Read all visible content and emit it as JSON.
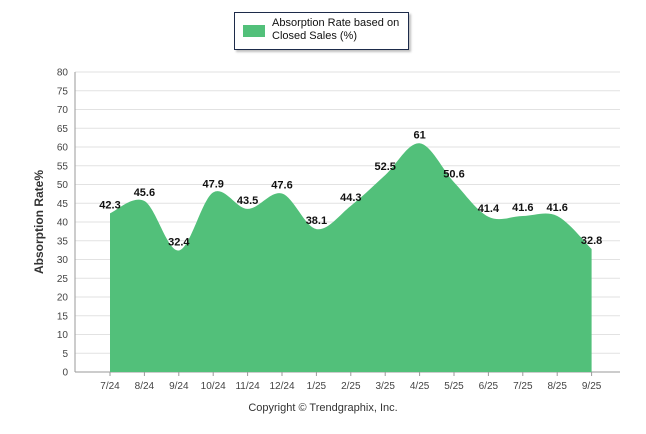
{
  "chart_data": {
    "type": "area",
    "legend_label": "Absorption Rate based on Closed Sales (%)",
    "ylabel": "Absorption Rate%",
    "xlabel": "",
    "ylim": [
      0,
      80
    ],
    "y_ticks": [
      0,
      5,
      10,
      15,
      20,
      25,
      30,
      35,
      40,
      45,
      50,
      55,
      60,
      65,
      70,
      75,
      80
    ],
    "categories": [
      "7/24",
      "8/24",
      "9/24",
      "10/24",
      "11/24",
      "12/24",
      "1/25",
      "2/25",
      "3/25",
      "4/25",
      "5/25",
      "6/25",
      "7/25",
      "8/25",
      "9/25"
    ],
    "values": [
      42.3,
      45.6,
      32.4,
      47.9,
      43.5,
      47.6,
      38.1,
      44.3,
      52.5,
      61,
      50.6,
      41.4,
      41.6,
      41.6,
      32.8
    ],
    "legend_position": "top-center",
    "grid": true
  },
  "colors": {
    "area": "#52c07a",
    "grid": "#e2e2e2",
    "axis": "#9a9a9a"
  },
  "footer": {
    "copyright": "Copyright © Trendgraphix, Inc."
  }
}
